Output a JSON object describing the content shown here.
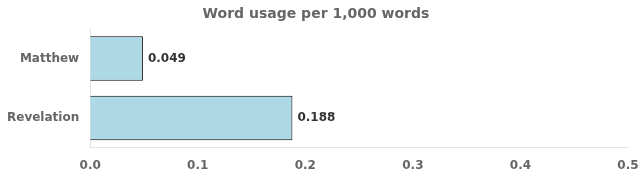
{
  "chart_data": {
    "type": "bar",
    "orientation": "horizontal",
    "title": "Word usage per 1,000 words",
    "categories": [
      "Matthew",
      "Revelation"
    ],
    "values": [
      0.049,
      0.188
    ],
    "color": "#add8e6",
    "xlim": [
      0,
      0.5
    ],
    "xticks": [
      {
        "value": 0,
        "label": "0.0"
      },
      0.1,
      0.2,
      0.3,
      0.4,
      0.5
    ],
    "grid": false,
    "data_labels": true
  }
}
